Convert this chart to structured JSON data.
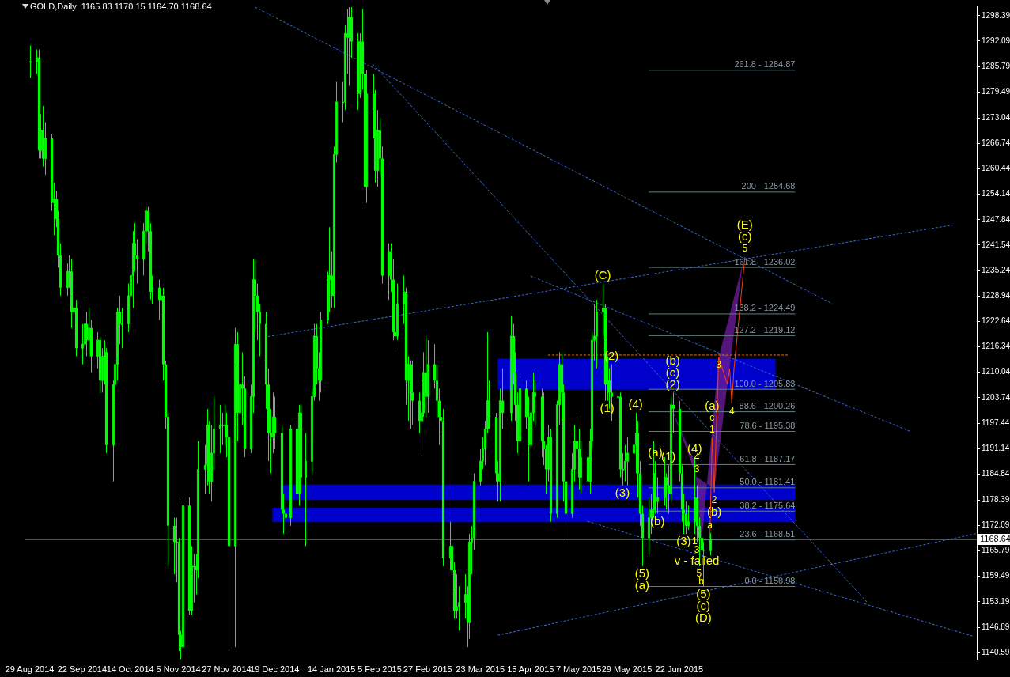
{
  "chart_data": {
    "type": "candlestick",
    "title": "GOLD,Daily",
    "subtitle": "1165.83 1170.15 1164.70 1168.64",
    "color": "#00ff00",
    "x": [
      "2014-08-29",
      "2014-09-01",
      "2014-09-02",
      "2014-09-03",
      "2014-09-04",
      "2014-09-05",
      "2014-09-08",
      "2014-09-09",
      "2014-09-10",
      "2014-09-11",
      "2014-09-12",
      "2014-09-15",
      "2014-09-16",
      "2014-09-17",
      "2014-09-18",
      "2014-09-19",
      "2014-09-22",
      "2014-09-23",
      "2014-09-24",
      "2014-09-25",
      "2014-09-26",
      "2014-09-29",
      "2014-09-30",
      "2014-10-01",
      "2014-10-02",
      "2014-10-03",
      "2014-10-06",
      "2014-10-07",
      "2014-10-08",
      "2014-10-09",
      "2014-10-10",
      "2014-10-13",
      "2014-10-14",
      "2014-10-15",
      "2014-10-16",
      "2014-10-17",
      "2014-10-20",
      "2014-10-21",
      "2014-10-22",
      "2014-10-23",
      "2014-10-24",
      "2014-10-27",
      "2014-10-28",
      "2014-10-29",
      "2014-10-30",
      "2014-10-31",
      "2014-11-03",
      "2014-11-04",
      "2014-11-05",
      "2014-11-06",
      "2014-11-07",
      "2014-11-10",
      "2014-11-11",
      "2014-11-12",
      "2014-11-13",
      "2014-11-14",
      "2014-11-17",
      "2014-11-18",
      "2014-11-19",
      "2014-11-20",
      "2014-11-21",
      "2014-11-24",
      "2014-11-25",
      "2014-11-26",
      "2014-11-27",
      "2014-11-28",
      "2014-12-01",
      "2014-12-02",
      "2014-12-03",
      "2014-12-04",
      "2014-12-05",
      "2014-12-08",
      "2014-12-09",
      "2014-12-10",
      "2014-12-11",
      "2014-12-12",
      "2014-12-15",
      "2014-12-16",
      "2014-12-17",
      "2014-12-18",
      "2014-12-19",
      "2014-12-22",
      "2014-12-23",
      "2014-12-24",
      "2014-12-26",
      "2014-12-29",
      "2014-12-30",
      "2014-12-31",
      "2015-01-02",
      "2015-01-05",
      "2015-01-06",
      "2015-01-07",
      "2015-01-08",
      "2015-01-09",
      "2015-01-12",
      "2015-01-13",
      "2015-01-14",
      "2015-01-15",
      "2015-01-16",
      "2015-01-19",
      "2015-01-20",
      "2015-01-21",
      "2015-01-22",
      "2015-01-23",
      "2015-01-26",
      "2015-01-27",
      "2015-01-28",
      "2015-01-29",
      "2015-01-30",
      "2015-02-02",
      "2015-02-03",
      "2015-02-04",
      "2015-02-05",
      "2015-02-06",
      "2015-02-09",
      "2015-02-10",
      "2015-02-11",
      "2015-02-12",
      "2015-02-13",
      "2015-02-16",
      "2015-02-17",
      "2015-02-18",
      "2015-02-19",
      "2015-02-20",
      "2015-02-23",
      "2015-02-24",
      "2015-02-25",
      "2015-02-26",
      "2015-02-27",
      "2015-03-02",
      "2015-03-03",
      "2015-03-04",
      "2015-03-05",
      "2015-03-06",
      "2015-03-09",
      "2015-03-10",
      "2015-03-11",
      "2015-03-12",
      "2015-03-13",
      "2015-03-16",
      "2015-03-17",
      "2015-03-18",
      "2015-03-19",
      "2015-03-20",
      "2015-03-23",
      "2015-03-24",
      "2015-03-25",
      "2015-03-26",
      "2015-03-27",
      "2015-03-30",
      "2015-03-31",
      "2015-04-01",
      "2015-04-02",
      "2015-04-06",
      "2015-04-07",
      "2015-04-08",
      "2015-04-09",
      "2015-04-10",
      "2015-04-13",
      "2015-04-14",
      "2015-04-15",
      "2015-04-16",
      "2015-04-17",
      "2015-04-20",
      "2015-04-21",
      "2015-04-22",
      "2015-04-23",
      "2015-04-24",
      "2015-04-27",
      "2015-04-28",
      "2015-04-29",
      "2015-04-30",
      "2015-05-01",
      "2015-05-04",
      "2015-05-05",
      "2015-05-06",
      "2015-05-07",
      "2015-05-08",
      "2015-05-11",
      "2015-05-12",
      "2015-05-13",
      "2015-05-14",
      "2015-05-15",
      "2015-05-18",
      "2015-05-19",
      "2015-05-20",
      "2015-05-21",
      "2015-05-22",
      "2015-05-25",
      "2015-05-26",
      "2015-05-27",
      "2015-05-28",
      "2015-05-29",
      "2015-06-01",
      "2015-06-02",
      "2015-06-03",
      "2015-06-04",
      "2015-06-05",
      "2015-06-08",
      "2015-06-09",
      "2015-06-10",
      "2015-06-11",
      "2015-06-12",
      "2015-06-15",
      "2015-06-16",
      "2015-06-17",
      "2015-06-18",
      "2015-06-19",
      "2015-06-22",
      "2015-06-23",
      "2015-06-24",
      "2015-06-25",
      "2015-06-26",
      "2015-06-29",
      "2015-06-30",
      "2015-07-01",
      "2015-07-02",
      "2015-07-03",
      "2015-07-06"
    ],
    "ohlc": [
      [
        1287,
        1291,
        1283,
        1287
      ],
      [
        1287,
        1290,
        1284,
        1288
      ],
      [
        1288,
        1290,
        1263,
        1265
      ],
      [
        1265,
        1274,
        1263,
        1270
      ],
      [
        1270,
        1276,
        1261,
        1263
      ],
      [
        1263,
        1272,
        1259,
        1268
      ],
      [
        1268,
        1269,
        1250,
        1252
      ],
      [
        1252,
        1257,
        1244,
        1253
      ],
      [
        1253,
        1255,
        1246,
        1248
      ],
      [
        1248,
        1250,
        1236,
        1239
      ],
      [
        1239,
        1242,
        1229,
        1231
      ],
      [
        1231,
        1237,
        1229,
        1235
      ],
      [
        1235,
        1239,
        1231,
        1235
      ],
      [
        1235,
        1238,
        1221,
        1225
      ],
      [
        1225,
        1230,
        1220,
        1226
      ],
      [
        1226,
        1228,
        1214,
        1216
      ],
      [
        1216,
        1222,
        1212,
        1217
      ],
      [
        1217,
        1228,
        1214,
        1222
      ],
      [
        1222,
        1225,
        1214,
        1218
      ],
      [
        1218,
        1226,
        1214,
        1221
      ],
      [
        1221,
        1223,
        1210,
        1214
      ],
      [
        1214,
        1220,
        1211,
        1218
      ],
      [
        1218,
        1219,
        1205,
        1208
      ],
      [
        1208,
        1216,
        1205,
        1214
      ],
      [
        1214,
        1218,
        1207,
        1215
      ],
      [
        1215,
        1216,
        1190,
        1192
      ],
      [
        1192,
        1208,
        1183,
        1207
      ],
      [
        1207,
        1213,
        1203,
        1212
      ],
      [
        1212,
        1226,
        1208,
        1225
      ],
      [
        1225,
        1229,
        1217,
        1222
      ],
      [
        1222,
        1226,
        1216,
        1222
      ],
      [
        1222,
        1232,
        1220,
        1229
      ],
      [
        1229,
        1236,
        1226,
        1234
      ],
      [
        1234,
        1245,
        1226,
        1242
      ],
      [
        1242,
        1247,
        1235,
        1239
      ],
      [
        1239,
        1243,
        1232,
        1238
      ],
      [
        1238,
        1247,
        1234,
        1245
      ],
      [
        1245,
        1251,
        1242,
        1250
      ],
      [
        1250,
        1251,
        1240,
        1245
      ],
      [
        1245,
        1247,
        1228,
        1230
      ],
      [
        1230,
        1234,
        1227,
        1231
      ],
      [
        1231,
        1233,
        1223,
        1228
      ],
      [
        1228,
        1232,
        1224,
        1229
      ],
      [
        1229,
        1231,
        1208,
        1212
      ],
      [
        1212,
        1213,
        1196,
        1199
      ],
      [
        1199,
        1200,
        1162,
        1172
      ],
      [
        1172,
        1174,
        1160,
        1168
      ],
      [
        1168,
        1174,
        1158,
        1168
      ],
      [
        1168,
        1169,
        1141,
        1145
      ],
      [
        1145,
        1146,
        1139,
        1142
      ],
      [
        1142,
        1179,
        1139,
        1177
      ],
      [
        1177,
        1179,
        1150,
        1151
      ],
      [
        1151,
        1167,
        1150,
        1162
      ],
      [
        1162,
        1165,
        1153,
        1162
      ],
      [
        1162,
        1165,
        1155,
        1161
      ],
      [
        1161,
        1193,
        1159,
        1186
      ],
      [
        1186,
        1192,
        1180,
        1187
      ],
      [
        1187,
        1201,
        1182,
        1197
      ],
      [
        1197,
        1198,
        1180,
        1183
      ],
      [
        1183,
        1197,
        1178,
        1190
      ],
      [
        1190,
        1204,
        1186,
        1196
      ],
      [
        1196,
        1202,
        1190,
        1197
      ],
      [
        1197,
        1200,
        1192,
        1197
      ],
      [
        1197,
        1202,
        1192,
        1197
      ],
      [
        1197,
        1200,
        1189,
        1194
      ],
      [
        1194,
        1196,
        1141,
        1167
      ],
      [
        1167,
        1221,
        1142,
        1217
      ],
      [
        1217,
        1220,
        1193,
        1200
      ],
      [
        1200,
        1212,
        1197,
        1207
      ],
      [
        1207,
        1215,
        1197,
        1206
      ],
      [
        1206,
        1209,
        1189,
        1191
      ],
      [
        1191,
        1207,
        1190,
        1204
      ],
      [
        1204,
        1238,
        1200,
        1233
      ],
      [
        1233,
        1238,
        1220,
        1229
      ],
      [
        1229,
        1232,
        1218,
        1225
      ],
      [
        1225,
        1227,
        1214,
        1222
      ],
      [
        1222,
        1225,
        1201,
        1207
      ],
      [
        1207,
        1211,
        1188,
        1195
      ],
      [
        1195,
        1201,
        1185,
        1194
      ],
      [
        1194,
        1205,
        1190,
        1199
      ],
      [
        1199,
        1204,
        1191,
        1195
      ],
      [
        1195,
        1197,
        1175,
        1176
      ],
      [
        1176,
        1180,
        1170,
        1175
      ],
      [
        1175,
        1178,
        1170,
        1174
      ],
      [
        1174,
        1197,
        1172,
        1196
      ],
      [
        1196,
        1198,
        1178,
        1180
      ],
      [
        1180,
        1202,
        1177,
        1200
      ],
      [
        1200,
        1202,
        1180,
        1184
      ],
      [
        1184,
        1195,
        1167,
        1188
      ],
      [
        1188,
        1206,
        1185,
        1204
      ],
      [
        1204,
        1222,
        1203,
        1219
      ],
      [
        1219,
        1222,
        1207,
        1211
      ],
      [
        1211,
        1215,
        1203,
        1208
      ],
      [
        1208,
        1225,
        1205,
        1223
      ],
      [
        1223,
        1235,
        1222,
        1233
      ],
      [
        1233,
        1246,
        1225,
        1234
      ],
      [
        1234,
        1240,
        1226,
        1229
      ],
      [
        1229,
        1266,
        1226,
        1264
      ],
      [
        1264,
        1282,
        1262,
        1277
      ],
      [
        1277,
        1282,
        1272,
        1277
      ],
      [
        1277,
        1296,
        1275,
        1294
      ],
      [
        1294,
        1300,
        1284,
        1293
      ],
      [
        1293,
        1300.5,
        1281,
        1298
      ],
      [
        1298,
        1300.5,
        1288,
        1292
      ],
      [
        1292,
        1294,
        1275,
        1279
      ],
      [
        1279,
        1294,
        1278,
        1292
      ],
      [
        1292,
        1300,
        1280,
        1284
      ],
      [
        1284,
        1285,
        1252,
        1256
      ],
      [
        1256,
        1285,
        1252,
        1279
      ],
      [
        1279,
        1284,
        1268,
        1275
      ],
      [
        1275,
        1280,
        1257,
        1260
      ],
      [
        1260,
        1275,
        1256,
        1270
      ],
      [
        1270,
        1273,
        1259,
        1263
      ],
      [
        1263,
        1266,
        1232,
        1234
      ],
      [
        1234,
        1242,
        1228,
        1240
      ],
      [
        1240,
        1242,
        1230,
        1233
      ],
      [
        1233,
        1238,
        1218,
        1220
      ],
      [
        1220,
        1226,
        1215,
        1219
      ],
      [
        1219,
        1232,
        1218,
        1227
      ],
      [
        1227,
        1234,
        1222,
        1230
      ],
      [
        1230,
        1231,
        1202,
        1208
      ],
      [
        1208,
        1214,
        1198,
        1212
      ],
      [
        1212,
        1213,
        1196,
        1205
      ],
      [
        1205,
        1213,
        1197,
        1203
      ],
      [
        1203,
        1205,
        1195,
        1198
      ],
      [
        1198,
        1208,
        1190,
        1200
      ],
      [
        1200,
        1215,
        1199,
        1210
      ],
      [
        1210,
        1219,
        1199,
        1204
      ],
      [
        1204,
        1218,
        1200,
        1212
      ],
      [
        1212,
        1217,
        1206,
        1208
      ],
      [
        1208,
        1212,
        1199,
        1203
      ],
      [
        1203,
        1206,
        1192,
        1199
      ],
      [
        1199,
        1204,
        1195,
        1198
      ],
      [
        1198,
        1201,
        1162,
        1164
      ],
      [
        1164,
        1173,
        1161,
        1167
      ],
      [
        1167,
        1168,
        1156,
        1161
      ],
      [
        1161,
        1163,
        1149,
        1151
      ],
      [
        1151,
        1160,
        1149,
        1152
      ],
      [
        1152,
        1157,
        1146,
        1153
      ],
      [
        1153,
        1160,
        1149,
        1155
      ],
      [
        1155,
        1157,
        1142,
        1148
      ],
      [
        1148,
        1170,
        1144,
        1168
      ],
      [
        1168,
        1172,
        1160,
        1169
      ],
      [
        1169,
        1185,
        1166,
        1183
      ],
      [
        1183,
        1191,
        1182,
        1188
      ],
      [
        1188,
        1194,
        1186,
        1191
      ],
      [
        1191,
        1198,
        1187,
        1196
      ],
      [
        1196,
        1220,
        1195,
        1203
      ],
      [
        1203,
        1208,
        1196,
        1199
      ],
      [
        1199,
        1200,
        1183,
        1185
      ],
      [
        1185,
        1188,
        1178,
        1183
      ],
      [
        1183,
        1206,
        1178,
        1203
      ],
      [
        1203,
        1211,
        1196,
        1200
      ],
      [
        1200,
        1224,
        1198,
        1219
      ],
      [
        1219,
        1222,
        1207,
        1210
      ],
      [
        1210,
        1215,
        1198,
        1202
      ],
      [
        1202,
        1205,
        1190,
        1193
      ],
      [
        1193,
        1209,
        1192,
        1206
      ],
      [
        1206,
        1208,
        1196,
        1199
      ],
      [
        1199,
        1204,
        1183,
        1192
      ],
      [
        1192,
        1209,
        1190,
        1200
      ],
      [
        1200,
        1210,
        1198,
        1205
      ],
      [
        1205,
        1208,
        1197,
        1204
      ],
      [
        1204,
        1206,
        1189,
        1193
      ],
      [
        1193,
        1205,
        1187,
        1191
      ],
      [
        1191,
        1192,
        1180,
        1186
      ],
      [
        1186,
        1197,
        1183,
        1194
      ],
      [
        1194,
        1196,
        1173,
        1175
      ],
      [
        1175,
        1203,
        1174,
        1202
      ],
      [
        1202,
        1215,
        1197,
        1212
      ],
      [
        1212,
        1215,
        1198,
        1205
      ],
      [
        1205,
        1207,
        1178,
        1183
      ],
      [
        1183,
        1187,
        1168,
        1175
      ],
      [
        1175,
        1190,
        1174,
        1186
      ],
      [
        1186,
        1197,
        1183,
        1193
      ],
      [
        1193,
        1200,
        1185,
        1191
      ],
      [
        1191,
        1196,
        1181,
        1184
      ],
      [
        1184,
        1193,
        1180,
        1189
      ],
      [
        1189,
        1190,
        1180,
        1183
      ],
      [
        1183,
        1196,
        1180,
        1193
      ],
      [
        1193,
        1220,
        1191,
        1218
      ],
      [
        1218,
        1227,
        1213,
        1219
      ],
      [
        1219,
        1228,
        1211,
        1225
      ],
      [
        1225,
        1232,
        1219,
        1226
      ],
      [
        1226,
        1227,
        1203,
        1207
      ],
      [
        1207,
        1214,
        1203,
        1208
      ],
      [
        1208,
        1211,
        1201,
        1205
      ],
      [
        1205,
        1212,
        1198,
        1204
      ],
      [
        1204,
        1206,
        1198,
        1204
      ],
      [
        1204,
        1205,
        1184,
        1186
      ],
      [
        1186,
        1190,
        1182,
        1186
      ],
      [
        1186,
        1192,
        1183,
        1188
      ],
      [
        1188,
        1194,
        1182,
        1190
      ],
      [
        1190,
        1197,
        1185,
        1192
      ],
      [
        1192,
        1200,
        1185,
        1195
      ],
      [
        1195,
        1198,
        1179,
        1185
      ],
      [
        1185,
        1188,
        1172,
        1175
      ],
      [
        1175,
        1177,
        1162,
        1169
      ],
      [
        1169,
        1179,
        1165,
        1174
      ],
      [
        1174,
        1180,
        1170,
        1176
      ],
      [
        1176,
        1193,
        1174,
        1185
      ],
      [
        1185,
        1188,
        1175,
        1178
      ],
      [
        1178,
        1184,
        1175,
        1179
      ],
      [
        1179,
        1189,
        1177,
        1184
      ],
      [
        1184,
        1185,
        1176,
        1182
      ],
      [
        1182,
        1187,
        1175,
        1180
      ],
      [
        1180,
        1204,
        1178,
        1202
      ],
      [
        1202,
        1205,
        1195,
        1201
      ],
      [
        1201,
        1203,
        1183,
        1185
      ],
      [
        1185,
        1187,
        1173,
        1176
      ],
      [
        1176,
        1180,
        1170,
        1175
      ],
      [
        1175,
        1178,
        1170,
        1172
      ],
      [
        1172,
        1177,
        1171,
        1173
      ],
      [
        1173,
        1189,
        1170,
        1179
      ],
      [
        1179,
        1182,
        1168,
        1172
      ],
      [
        1172,
        1174,
        1162,
        1169
      ],
      [
        1169,
        1170,
        1160,
        1166
      ],
      [
        1166,
        1168,
        1157,
        1165.83
      ],
      [
        1165.83,
        1170.15,
        1164.7,
        1168.64
      ]
    ],
    "xlim": [
      "2014-08-27",
      "2015-11-05"
    ],
    "xticks": [
      {
        "value": "2014-08-29",
        "label": "29 Aug 2014"
      },
      {
        "value": "2014-09-22",
        "label": "22 Sep 2014"
      },
      {
        "value": "2014-10-14",
        "label": "14 Oct 2014"
      },
      {
        "value": "2014-11-05",
        "label": "5 Nov 2014"
      },
      {
        "value": "2014-11-27",
        "label": "27 Nov 2014"
      },
      {
        "value": "2014-12-19",
        "label": "19 Dec 2014"
      },
      {
        "value": "2015-01-14",
        "label": "14 Jan 2015"
      },
      {
        "value": "2015-02-05",
        "label": "5 Feb 2015"
      },
      {
        "value": "2015-02-27",
        "label": "27 Feb 2015"
      },
      {
        "value": "2015-03-23",
        "label": "23 Mar 2015"
      },
      {
        "value": "2015-04-15",
        "label": "15 Apr 2015"
      },
      {
        "value": "2015-05-07",
        "label": "7 May 2015"
      },
      {
        "value": "2015-05-29",
        "label": "29 May 2015"
      },
      {
        "value": "2015-06-22",
        "label": "22 Jun 2015"
      }
    ],
    "ylim": [
      1138.7,
      1300.7
    ],
    "yticks": [
      1298.39,
      1292.09,
      1285.79,
      1279.49,
      1273.04,
      1266.74,
      1260.44,
      1254.14,
      1247.84,
      1241.54,
      1235.24,
      1228.94,
      1222.64,
      1216.34,
      1210.04,
      1203.74,
      1197.44,
      1191.14,
      1184.84,
      1178.39,
      1172.09,
      1165.79,
      1159.49,
      1153.19,
      1146.89,
      1140.59
    ],
    "ref_lines": [
      {
        "axis": "y",
        "value": 1168.64,
        "label": "1168.64",
        "color": "#a0a0a0"
      }
    ],
    "series": [
      {
        "type": "line",
        "color": "#0000cc",
        "x": [
          "2015-03-31",
          "2015-08-05"
        ],
        "values": [
          null,
          null
        ],
        "lower": [
          1205.7,
          1205.7
        ],
        "upper": [
          1213.4,
          1213.4
        ]
      },
      {
        "type": "line",
        "color": "#0000cc",
        "x": [
          "2014-12-22",
          "2015-08-14"
        ],
        "values": [
          null,
          null
        ],
        "lower": [
          1178.4,
          1178.4
        ],
        "upper": [
          1182.2,
          1182.2
        ]
      },
      {
        "type": "line",
        "color": "#0000cc",
        "x": [
          "2014-12-18",
          "2015-08-14"
        ],
        "values": [
          null,
          null
        ],
        "lower": [
          1172.9,
          1172.9
        ],
        "upper": [
          1176.5,
          1176.5
        ]
      },
      {
        "type": "line",
        "color": "#3a6ad0",
        "line_style": "dashed",
        "x": [
          "2014-12-10",
          "2015-08-31"
        ],
        "values": [
          1300.5,
          1227.0
        ]
      },
      {
        "type": "line",
        "color": "#3a6ad0",
        "line_style": "dashed",
        "x": [
          "2015-02-02",
          "2015-09-16"
        ],
        "values": [
          1286.3,
          1153.0
        ]
      },
      {
        "type": "line",
        "color": "#3a6ad0",
        "line_style": "dashed",
        "x": [
          "2015-04-15",
          "2015-10-06"
        ],
        "values": [
          1233.9,
          1195.3
        ]
      },
      {
        "type": "line",
        "color": "#3a6ad0",
        "line_style": "dashed",
        "x": [
          "2014-12-16",
          "2015-10-26"
        ],
        "values": [
          1218.9,
          1246.6
        ]
      },
      {
        "type": "line",
        "color": "#3a6ad0",
        "line_style": "dashed",
        "x": [
          "2015-03-31",
          "2015-11-05"
        ],
        "values": [
          1144.9,
          1170.1
        ]
      },
      {
        "type": "line",
        "color": "#3a6ad0",
        "line_style": "dashed",
        "x": [
          "2015-05-11",
          "2015-11-03"
        ],
        "values": [
          1173.1,
          1144.7
        ]
      },
      {
        "type": "line",
        "color": "#ff6600",
        "line_style": "dashed",
        "x": [
          "2015-04-23",
          "2015-08-11"
        ],
        "values": [
          1214.3,
          1214.3
        ]
      },
      {
        "type": "line",
        "name": "261.8 - 1284.87",
        "color": "#5f7f7f",
        "x": [
          "2015-06-08",
          "2015-08-14"
        ],
        "values": [
          1284.87,
          1284.87
        ]
      },
      {
        "type": "line",
        "name": "200 - 1254.68",
        "color": "#5f7f7f",
        "x": [
          "2015-06-08",
          "2015-08-14"
        ],
        "values": [
          1254.68,
          1254.68
        ]
      },
      {
        "type": "line",
        "name": "161.8 - 1236.02",
        "color": "#5f7f7f",
        "x": [
          "2015-06-08",
          "2015-08-14"
        ],
        "values": [
          1236.02,
          1236.02
        ]
      },
      {
        "type": "line",
        "name": "138.2 - 1224.49",
        "color": "#5f7f7f",
        "x": [
          "2015-06-08",
          "2015-08-14"
        ],
        "values": [
          1224.49,
          1224.49
        ]
      },
      {
        "type": "line",
        "name": "127.2 - 1219.12",
        "color": "#5f7f7f",
        "x": [
          "2015-06-08",
          "2015-08-14"
        ],
        "values": [
          1219.12,
          1219.12
        ]
      },
      {
        "type": "line",
        "name": "100.0 - 1205.83",
        "color": "#5f7f7f",
        "x": [
          "2015-06-08",
          "2015-08-14"
        ],
        "values": [
          1205.83,
          1205.83
        ]
      },
      {
        "type": "line",
        "name": "88.6 - 1200.26",
        "color": "#5f7f7f",
        "x": [
          "2015-06-08",
          "2015-08-14"
        ],
        "values": [
          1200.26,
          1200.26
        ]
      },
      {
        "type": "line",
        "name": "78.6 - 1195.38",
        "color": "#5f7f7f",
        "x": [
          "2015-06-08",
          "2015-08-14"
        ],
        "values": [
          1195.38,
          1195.38
        ]
      },
      {
        "type": "line",
        "name": "61.8 - 1187.17",
        "color": "#5f7f7f",
        "x": [
          "2015-06-08",
          "2015-08-14"
        ],
        "values": [
          1187.17,
          1187.17
        ]
      },
      {
        "type": "line",
        "name": "50.0 - 1181.41",
        "color": "#5f7f7f",
        "x": [
          "2015-06-08",
          "2015-08-14"
        ],
        "values": [
          1181.41,
          1181.41
        ]
      },
      {
        "type": "line",
        "name": "38.2 - 1175.64",
        "color": "#5f7f7f",
        "x": [
          "2015-06-08",
          "2015-08-14"
        ],
        "values": [
          1175.64,
          1175.64
        ]
      },
      {
        "type": "line",
        "name": "23.6 - 1168.51",
        "color": "#5f7f7f",
        "x": [
          "2015-06-08",
          "2015-08-14"
        ],
        "values": [
          1168.51,
          1168.51
        ]
      },
      {
        "type": "line",
        "name": "0.0 - 1156.98",
        "color": "#5f7f7f",
        "x": [
          "2015-06-08",
          "2015-08-14"
        ],
        "values": [
          1156.98,
          1156.98
        ]
      },
      {
        "type": "area",
        "color": "#6a1b9a",
        "x": [
          "2015-06-18",
          "2015-06-29",
          "2015-07-02",
          "2015-07-10",
          "2015-07-21",
          "2015-07-08",
          "2015-06-30"
        ],
        "values": [
          1201.7,
          1188.0,
          1166.9,
          1213.7,
          1237,
          1181.3,
          1184.0
        ]
      },
      {
        "type": "line",
        "color": "#ff4000",
        "x": [
          "2015-07-06",
          "2015-07-07",
          "2015-07-08",
          "2015-07-10",
          "2015-07-14",
          "2015-07-15",
          "2015-07-16",
          "2015-07-17",
          "2015-07-22"
        ],
        "values": [
          1168.9,
          1193.7,
          1180.3,
          1213.7,
          1207.1,
          1210.9,
          1202.3,
          1210.9,
          1238.6
        ]
      }
    ],
    "annotations": [
      {
        "text": "(C)",
        "x": "2015-05-18",
        "y": 1232
      },
      {
        "text": "(2)",
        "x": "2015-05-22",
        "y": 1212
      },
      {
        "text": "(4)",
        "x": "2015-06-02",
        "y": 1200
      },
      {
        "text": "(1)",
        "x": "2015-05-20",
        "y": 1203
      },
      {
        "text": "(3)",
        "x": "2015-05-27",
        "y": 1182
      },
      {
        "text": "(5)",
        "x": "2015-06-05",
        "y": 1162
      },
      {
        "text": "(a)",
        "x": "2015-06-05",
        "y": 1162
      },
      {
        "text": "(2)",
        "x": "2015-06-19",
        "y": 1205
      },
      {
        "text": "(c)",
        "x": "2015-06-19",
        "y": 1205
      },
      {
        "text": "(b)",
        "x": "2015-06-19",
        "y": 1205
      },
      {
        "text": "(a)",
        "x": "2015-06-11",
        "y": 1188
      },
      {
        "text": "(1)",
        "x": "2015-06-17",
        "y": 1187
      },
      {
        "text": "(4)",
        "x": "2015-06-29",
        "y": 1189
      },
      {
        "text": "(b)",
        "x": "2015-06-12",
        "y": 1175
      },
      {
        "text": "(3)",
        "x": "2015-06-24",
        "y": 1170
      },
      {
        "text": "1",
        "x": "2015-06-29",
        "y": 1170
      },
      {
        "text": "3",
        "x": "2015-06-30",
        "y": 1168
      },
      {
        "text": "3",
        "x": "2015-06-30",
        "y": 1184.0
      },
      {
        "text": "4",
        "x": "2015-06-30",
        "y": 1184.0
      },
      {
        "text": "v - failed",
        "x": "2015-06-30",
        "y": 1168
      },
      {
        "text": "a",
        "x": "2015-07-06",
        "y": 1170.15
      },
      {
        "text": "b",
        "x": "2015-07-02",
        "y": 1160
      },
      {
        "text": "5",
        "x": "2015-07-01",
        "y": 1162
      },
      {
        "text": "(5)",
        "x": "2015-07-03",
        "y": 1157
      },
      {
        "text": "(c)",
        "x": "2015-07-03",
        "y": 1157
      },
      {
        "text": "(D)",
        "x": "2015-07-03",
        "y": 1157
      },
      {
        "text": "1",
        "x": "2015-07-07",
        "y": 1193.7
      },
      {
        "text": "c",
        "x": "2015-07-07",
        "y": 1193.7
      },
      {
        "text": "(a)",
        "x": "2015-07-07",
        "y": 1193.7
      },
      {
        "text": "2",
        "x": "2015-07-08",
        "y": 1180.3
      },
      {
        "text": "(b)",
        "x": "2015-07-08",
        "y": 1180.3
      },
      {
        "text": "3",
        "x": "2015-07-10",
        "y": 1213.7
      },
      {
        "text": "4",
        "x": "2015-07-16",
        "y": 1202.3
      },
      {
        "text": "5",
        "x": "2015-07-22",
        "y": 1238.6
      },
      {
        "text": "(c)",
        "x": "2015-07-22",
        "y": 1238.6
      },
      {
        "text": "(E)",
        "x": "2015-07-22",
        "y": 1238.6
      }
    ]
  }
}
